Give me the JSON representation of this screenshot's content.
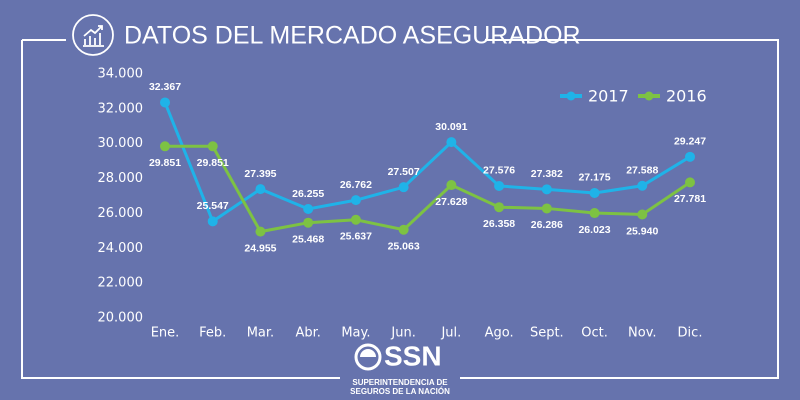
{
  "chart_data": {
    "type": "line",
    "title": "DATOS DEL MERCADO ASEGURADOR",
    "categories": [
      "Ene.",
      "Feb.",
      "Mar.",
      "Abr.",
      "May.",
      "Jun.",
      "Jul.",
      "Ago.",
      "Sept.",
      "Oct.",
      "Nov.",
      "Dic."
    ],
    "series": [
      {
        "name": "2017",
        "color": "#1fb3e8",
        "values": [
          32367,
          25547,
          27395,
          26255,
          26762,
          27507,
          30091,
          27576,
          27382,
          27175,
          27588,
          29247
        ],
        "value_labels": [
          "32.367",
          "25.547",
          "27.395",
          "26.255",
          "26.762",
          "27.507",
          "30.091",
          "27.576",
          "27.382",
          "27.175",
          "27.588",
          "29.247"
        ]
      },
      {
        "name": "2016",
        "color": "#7dc243",
        "values": [
          29851,
          29851,
          24955,
          25468,
          25637,
          25063,
          27628,
          26358,
          26286,
          26023,
          25940,
          27781
        ],
        "value_labels": [
          "29.851",
          "29.851",
          "24.955",
          "25.468",
          "25.637",
          "25.063",
          "27.628",
          "26.358",
          "26.286",
          "26.023",
          "25.940",
          "27.781"
        ]
      }
    ],
    "ylim": [
      20000,
      34000
    ],
    "yticks": [
      {
        "value": 20000,
        "label": "20.000"
      },
      {
        "value": 22000,
        "label": "22.000"
      },
      {
        "value": 24000,
        "label": "24.000"
      },
      {
        "value": 26000,
        "label": "26.000"
      },
      {
        "value": 28000,
        "label": "28.000"
      },
      {
        "value": 30000,
        "label": "30.000"
      },
      {
        "value": 32000,
        "label": "32.000"
      },
      {
        "value": 34000,
        "label": "34.000"
      }
    ],
    "legend": "top-right"
  },
  "footer": {
    "logo": "SSN",
    "line1": "SUPERINTENDENCIA DE",
    "line2": "SEGUROS DE LA NACIÓN"
  }
}
